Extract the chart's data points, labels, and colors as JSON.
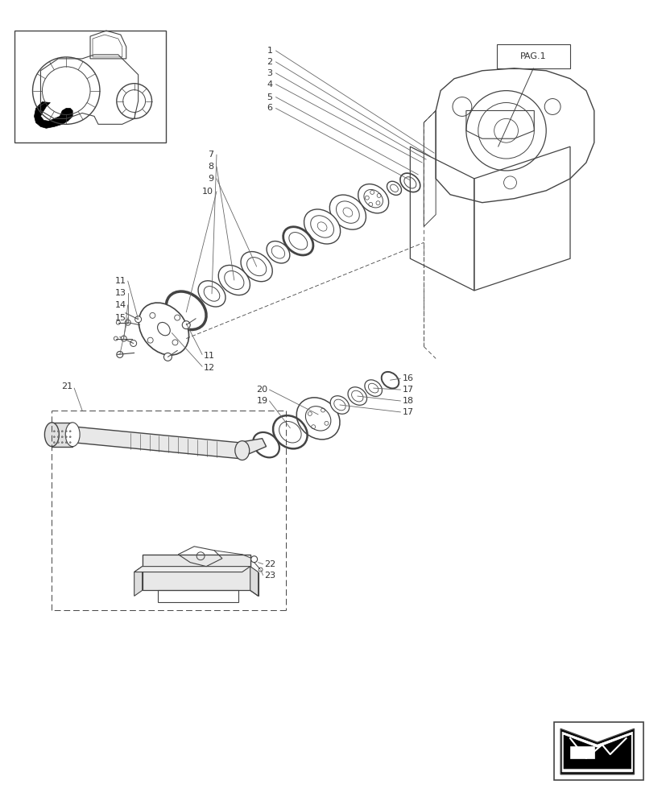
{
  "bg_color": "#ffffff",
  "line_color": "#444444",
  "text_color": "#333333",
  "fig_width": 8.28,
  "fig_height": 10.0,
  "dpi": 100
}
